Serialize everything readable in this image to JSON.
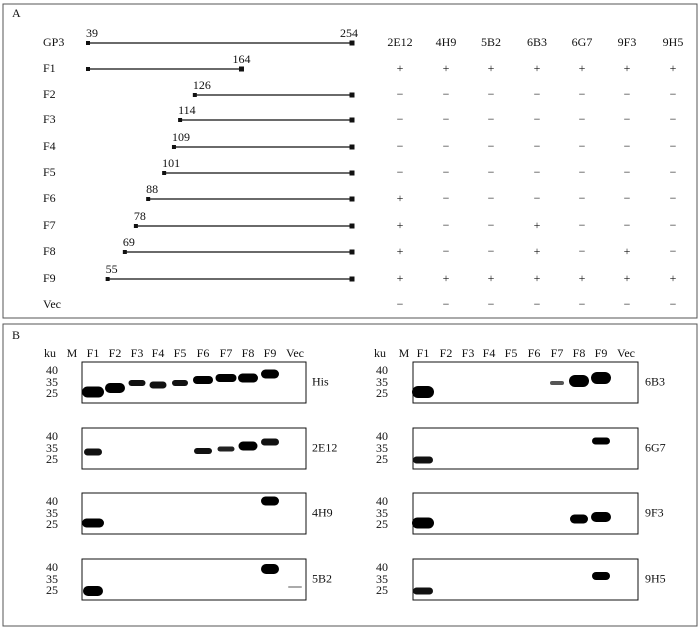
{
  "panel_a": {
    "label": "A",
    "columns": [
      "2E12",
      "4H9",
      "5B2",
      "6B3",
      "6G7",
      "9F3",
      "9H5"
    ],
    "rows": [
      {
        "name": "GP3",
        "start": 39,
        "end": 254
      },
      {
        "name": "F1",
        "end": 164,
        "results": [
          "+",
          "+",
          "+",
          "+",
          "+",
          "+",
          "+"
        ]
      },
      {
        "name": "F2",
        "start": 126,
        "results": [
          "−",
          "−",
          "−",
          "−",
          "−",
          "−",
          "−"
        ]
      },
      {
        "name": "F3",
        "start": 114,
        "results": [
          "−",
          "−",
          "−",
          "−",
          "−",
          "−",
          "−"
        ]
      },
      {
        "name": "F4",
        "start": 109,
        "results": [
          "−",
          "−",
          "−",
          "−",
          "−",
          "−",
          "−"
        ]
      },
      {
        "name": "F5",
        "start": 101,
        "results": [
          "−",
          "−",
          "−",
          "−",
          "−",
          "−",
          "−"
        ]
      },
      {
        "name": "F6",
        "start": 88,
        "results": [
          "+",
          "−",
          "−",
          "−",
          "−",
          "−",
          "−"
        ]
      },
      {
        "name": "F7",
        "start": 78,
        "results": [
          "+",
          "−",
          "−",
          "+",
          "−",
          "−",
          "−"
        ]
      },
      {
        "name": "F8",
        "start": 69,
        "results": [
          "+",
          "−",
          "−",
          "+",
          "−",
          "+",
          "−"
        ]
      },
      {
        "name": "F9",
        "start": 55,
        "results": [
          "+",
          "+",
          "+",
          "+",
          "+",
          "+",
          "+"
        ]
      },
      {
        "name": "Vec",
        "results": [
          "−",
          "−",
          "−",
          "−",
          "−",
          "−",
          "−"
        ]
      }
    ]
  },
  "panel_b": {
    "label": "B",
    "unit": "ku",
    "lanes": [
      "M",
      "F1",
      "F2",
      "F3",
      "F4",
      "F5",
      "F6",
      "F7",
      "F8",
      "F9",
      "Vec"
    ],
    "markers": [
      40,
      35,
      25
    ],
    "blots": [
      {
        "name": "His"
      },
      {
        "name": "2E12"
      },
      {
        "name": "4H9"
      },
      {
        "name": "5B2"
      },
      {
        "name": "6B3"
      },
      {
        "name": "6G7"
      },
      {
        "name": "9F3"
      },
      {
        "name": "9H5"
      }
    ]
  }
}
